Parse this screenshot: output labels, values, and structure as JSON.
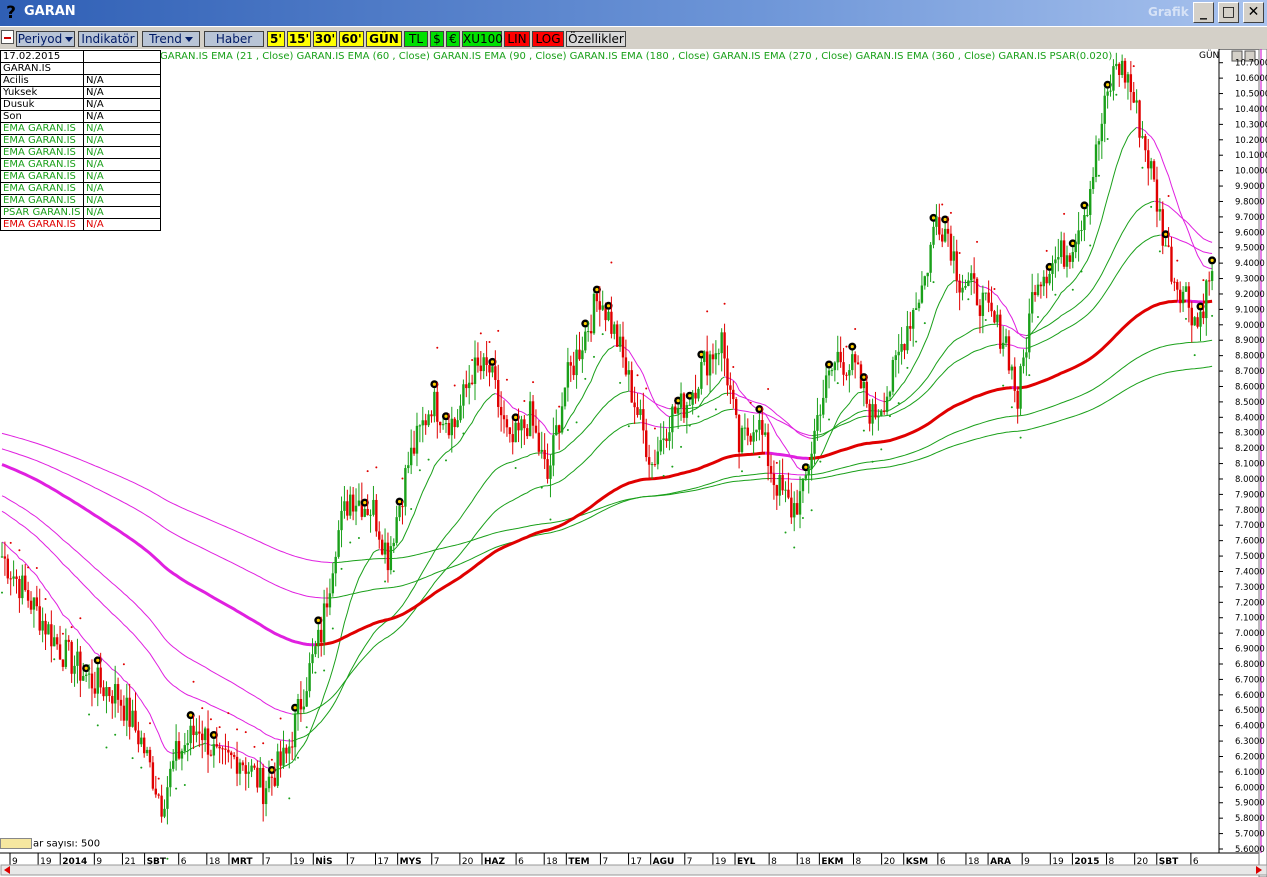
{
  "window": {
    "title": "GARAN",
    "help_icon": "?",
    "right_label": "Grafik",
    "controls": [
      "_",
      "□",
      "✕"
    ]
  },
  "toolbar": {
    "icon": "chart-icon",
    "periyod": "Periyod",
    "indikator": "Indikatör",
    "trend": "Trend",
    "haber": "Haber",
    "p5": "5'",
    "p15": "15'",
    "p30": "30'",
    "p60": "60'",
    "gun": "GÜN",
    "tl": "TL",
    "usd": "$",
    "eur": "€",
    "xu100": "XU100",
    "lin": "LIN",
    "log": "LOG",
    "ozellikler": "Özellikler"
  },
  "info": {
    "date": "17.02.2015",
    "symbol": "GARAN.IS",
    "rows": [
      {
        "k": " Acilis",
        "v": "N/A",
        "color": "#000000"
      },
      {
        "k": " Yuksek",
        "v": "N/A",
        "color": "#000000"
      },
      {
        "k": " Dusuk",
        "v": "N/A",
        "color": "#000000"
      },
      {
        "k": " Son",
        "v": "N/A",
        "color": "#000000"
      },
      {
        "k": "EMA GARAN.IS",
        "v": "N/A",
        "color": "#1aa01a"
      },
      {
        "k": "EMA GARAN.IS",
        "v": "N/A",
        "color": "#1aa01a"
      },
      {
        "k": "EMA GARAN.IS",
        "v": "N/A",
        "color": "#1aa01a"
      },
      {
        "k": "EMA GARAN.IS",
        "v": "N/A",
        "color": "#1aa01a"
      },
      {
        "k": "EMA GARAN.IS",
        "v": "N/A",
        "color": "#1aa01a"
      },
      {
        "k": "EMA GARAN.IS",
        "v": "N/A",
        "color": "#1aa01a"
      },
      {
        "k": "EMA GARAN.IS",
        "v": "N/A",
        "color": "#1aa01a"
      },
      {
        "k": "PSAR GARAN.IS",
        "v": "N/A",
        "color": "#1aa01a"
      },
      {
        "k": "EMA GARAN.IS",
        "v": "N/A",
        "color": "#e00000"
      }
    ]
  },
  "legend": "GARAN.IS EMA (21 , Close)  GARAN.IS EMA (60 , Close)  GARAN.IS EMA (90 , Close)  GARAN.IS EMA (180 , Close)  GARAN.IS EMA (270 , Close)  GARAN.IS EMA (360 , Close)  GARAN.IS PSAR(0.020)",
  "gun_label": "GÜN",
  "bar_count": "ar sayısı: 500",
  "colors": {
    "up": "#1aa01a",
    "down": "#e00000",
    "magenta": "#e020e0",
    "psar_up": "#1aa01a",
    "psar_down": "#e00000"
  },
  "chart_data": {
    "type": "candlestick",
    "symbol": "GARAN.IS",
    "ylim": [
      5.6,
      10.75
    ],
    "y_ticks": [
      "10.7000",
      "10.6000",
      "10.5000",
      "10.4000",
      "10.3000",
      "10.2000",
      "10.1000",
      "10.0000",
      "9.9000",
      "9.8000",
      "9.7000",
      "9.6000",
      "9.5000",
      "9.4000",
      "9.3000",
      "9.2000",
      "9.1000",
      "9.0000",
      "8.9000",
      "8.8000",
      "8.7000",
      "8.6000",
      "8.5000",
      "8.4000",
      "8.3000",
      "8.2000",
      "8.1000",
      "8.0000",
      "7.9000",
      "7.8000",
      "7.7000",
      "7.6000",
      "7.5000",
      "7.4000",
      "7.3000",
      "7.2000",
      "7.1000",
      "7.0000",
      "6.9000",
      "6.8000",
      "6.7000",
      "6.6000",
      "6.5000",
      "6.4000",
      "6.3000",
      "6.2000",
      "6.1000",
      "6.0000",
      "5.9000",
      "5.8000",
      "5.7000",
      "5.6000"
    ],
    "x_labels": [
      {
        "text": "9"
      },
      {
        "text": "19"
      },
      {
        "text": "2014",
        "bold": true
      },
      {
        "text": "9"
      },
      {
        "text": "21"
      },
      {
        "text": "ŞBT",
        "bold": true
      },
      {
        "text": "6"
      },
      {
        "text": "18"
      },
      {
        "text": "MRT",
        "bold": true
      },
      {
        "text": "7"
      },
      {
        "text": "19"
      },
      {
        "text": "NİS",
        "bold": true
      },
      {
        "text": "7"
      },
      {
        "text": "17"
      },
      {
        "text": "MYS",
        "bold": true
      },
      {
        "text": "7"
      },
      {
        "text": "20"
      },
      {
        "text": "HAZ",
        "bold": true
      },
      {
        "text": "6"
      },
      {
        "text": "18"
      },
      {
        "text": "TEM",
        "bold": true
      },
      {
        "text": "7"
      },
      {
        "text": "17"
      },
      {
        "text": "AGU",
        "bold": true
      },
      {
        "text": "7"
      },
      {
        "text": "19"
      },
      {
        "text": "EYL",
        "bold": true
      },
      {
        "text": "8"
      },
      {
        "text": "18"
      },
      {
        "text": "EKM",
        "bold": true
      },
      {
        "text": "8"
      },
      {
        "text": "20"
      },
      {
        "text": "KSM",
        "bold": true
      },
      {
        "text": "6"
      },
      {
        "text": "18"
      },
      {
        "text": "ARA",
        "bold": true
      },
      {
        "text": "9"
      },
      {
        "text": "19"
      },
      {
        "text": "2015",
        "bold": true
      },
      {
        "text": "8"
      },
      {
        "text": "20"
      },
      {
        "text": "ŞBT",
        "bold": true
      },
      {
        "text": "6"
      }
    ],
    "close_anchors": [
      [
        0,
        7.5
      ],
      [
        10,
        7.2
      ],
      [
        20,
        6.9
      ],
      [
        30,
        6.7
      ],
      [
        40,
        6.6
      ],
      [
        48,
        6.3
      ],
      [
        55,
        5.9
      ],
      [
        60,
        6.2
      ],
      [
        68,
        6.4
      ],
      [
        75,
        6.15
      ],
      [
        82,
        6.2
      ],
      [
        90,
        6.0
      ],
      [
        98,
        6.2
      ],
      [
        105,
        6.7
      ],
      [
        110,
        7.0
      ],
      [
        115,
        7.6
      ],
      [
        120,
        7.9
      ],
      [
        128,
        7.8
      ],
      [
        133,
        7.5
      ],
      [
        140,
        8.1
      ],
      [
        148,
        8.5
      ],
      [
        156,
        8.35
      ],
      [
        162,
        8.7
      ],
      [
        168,
        8.7
      ],
      [
        175,
        8.2
      ],
      [
        182,
        8.4
      ],
      [
        188,
        8.0
      ],
      [
        194,
        8.6
      ],
      [
        200,
        8.9
      ],
      [
        206,
        9.2
      ],
      [
        212,
        8.9
      ],
      [
        218,
        8.5
      ],
      [
        224,
        8.1
      ],
      [
        230,
        8.4
      ],
      [
        236,
        8.5
      ],
      [
        242,
        8.75
      ],
      [
        248,
        8.9
      ],
      [
        254,
        8.2
      ],
      [
        260,
        8.4
      ],
      [
        266,
        8.0
      ],
      [
        272,
        7.8
      ],
      [
        276,
        7.9
      ],
      [
        282,
        8.5
      ],
      [
        288,
        8.8
      ],
      [
        294,
        8.7
      ],
      [
        300,
        8.4
      ],
      [
        306,
        8.6
      ],
      [
        312,
        9.0
      ],
      [
        318,
        9.3
      ],
      [
        322,
        9.7
      ],
      [
        326,
        9.6
      ],
      [
        330,
        9.3
      ],
      [
        336,
        9.2
      ],
      [
        342,
        9.0
      ],
      [
        346,
        8.9
      ],
      [
        350,
        8.5
      ],
      [
        356,
        9.3
      ],
      [
        362,
        9.4
      ],
      [
        368,
        9.5
      ],
      [
        374,
        9.8
      ],
      [
        380,
        10.4
      ],
      [
        384,
        10.7
      ],
      [
        388,
        10.6
      ],
      [
        392,
        10.3
      ],
      [
        396,
        10.0
      ],
      [
        400,
        9.6
      ],
      [
        404,
        9.3
      ],
      [
        408,
        9.2
      ],
      [
        412,
        9.0
      ],
      [
        416,
        9.3
      ]
    ],
    "ema_levels": {
      "ema21_end": 9.45,
      "ema60_end": 9.35,
      "ema90_end": 9.0,
      "ema180_end": 8.85,
      "ema270_end": 8.6,
      "ema360_end": 8.5
    },
    "psar": "dotted series alternating above/below price"
  }
}
